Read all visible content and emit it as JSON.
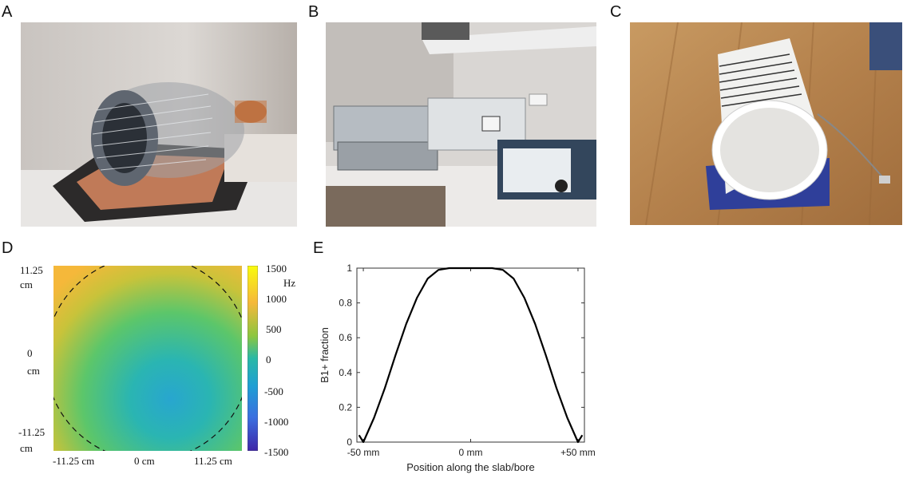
{
  "panels": {
    "a": {
      "letter": "A"
    },
    "b": {
      "letter": "B"
    },
    "c": {
      "letter": "C"
    },
    "d": {
      "letter": "D"
    },
    "e": {
      "letter": "E"
    }
  },
  "heatmap": {
    "y_ticks": [
      "11.25",
      "cm",
      "0",
      "cm",
      "-11.25",
      "cm"
    ],
    "x_ticks": [
      "-11.25 cm",
      "0 cm",
      "11.25 cm"
    ],
    "colorbar_ticks": [
      "1500",
      "1000",
      "500",
      "0",
      "-500",
      "-1000",
      "-1500"
    ],
    "colorbar_unit": "Hz",
    "colors": {
      "high": "#f9e11e",
      "mid": "#2ab9a6",
      "low": "#3e26a8"
    }
  },
  "chart_data": {
    "type": "line",
    "xlabel": "Position along the slab/bore",
    "ylabel": "B1+ fraction",
    "x_tick_labels": [
      "-50 mm",
      "0 mm",
      "+50 mm"
    ],
    "y_tick_labels": [
      "0",
      "0.2",
      "0.4",
      "0.6",
      "0.8",
      "1"
    ],
    "xlim": [
      -50,
      50
    ],
    "ylim": [
      0,
      1
    ],
    "series": [
      {
        "x": [
          -52,
          -50,
          -45,
          -40,
          -35,
          -30,
          -25,
          -20,
          -15,
          -10,
          -5,
          0,
          5,
          10,
          15,
          20,
          25,
          30,
          35,
          40,
          45,
          50,
          52
        ],
        "values": [
          0.04,
          0.0,
          0.14,
          0.31,
          0.5,
          0.68,
          0.83,
          0.94,
          0.99,
          1.0,
          1.0,
          1.0,
          1.0,
          1.0,
          0.99,
          0.94,
          0.83,
          0.68,
          0.5,
          0.31,
          0.14,
          0.0,
          0.04
        ]
      }
    ]
  }
}
